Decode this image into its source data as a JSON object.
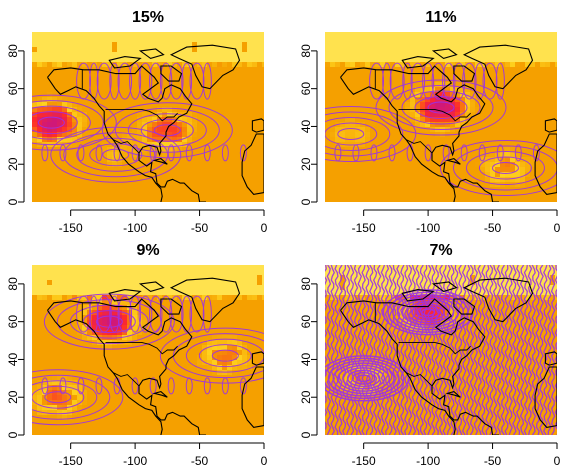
{
  "chart_data": [
    {
      "type": "heatmap",
      "title": "15%",
      "xticks": [
        -150,
        -100,
        -50,
        0
      ],
      "yticks": [
        0,
        20,
        40,
        60,
        80
      ],
      "xlim": [
        -180,
        0
      ],
      "ylim": [
        0,
        90
      ],
      "hotspots": [
        {
          "lon": -165,
          "lat": 42,
          "intensity": 1.0
        },
        {
          "lon": -75,
          "lat": 38,
          "intensity": 0.7
        },
        {
          "lon": -115,
          "lat": 25,
          "intensity": 0.3
        }
      ],
      "contour_density": 0.35
    },
    {
      "type": "heatmap",
      "title": "11%",
      "xticks": [
        -150,
        -100,
        -50,
        0
      ],
      "yticks": [
        0,
        20,
        40,
        60,
        80
      ],
      "xlim": [
        -180,
        0
      ],
      "ylim": [
        0,
        90
      ],
      "hotspots": [
        {
          "lon": -90,
          "lat": 50,
          "intensity": 1.0
        },
        {
          "lon": -40,
          "lat": 18,
          "intensity": 0.5
        },
        {
          "lon": -160,
          "lat": 36,
          "intensity": 0.35
        }
      ],
      "contour_density": 0.35
    },
    {
      "type": "heatmap",
      "title": "9%",
      "xticks": [
        -150,
        -100,
        -50,
        0
      ],
      "yticks": [
        0,
        20,
        40,
        60,
        80
      ],
      "xlim": [
        -180,
        0
      ],
      "ylim": [
        0,
        90
      ],
      "hotspots": [
        {
          "lon": -120,
          "lat": 60,
          "intensity": 1.0
        },
        {
          "lon": -160,
          "lat": 20,
          "intensity": 0.6
        },
        {
          "lon": -30,
          "lat": 42,
          "intensity": 0.55
        }
      ],
      "contour_density": 0.4
    },
    {
      "type": "heatmap",
      "title": "7%",
      "xticks": [
        -150,
        -100,
        -50,
        0
      ],
      "yticks": [
        0,
        20,
        40,
        60,
        80
      ],
      "xlim": [
        -180,
        0
      ],
      "ylim": [
        0,
        90
      ],
      "hotspots": [
        {
          "lon": -100,
          "lat": 65,
          "intensity": 0.8
        },
        {
          "lon": -150,
          "lat": 30,
          "intensity": 0.5
        }
      ],
      "contour_density": 1.0
    }
  ],
  "colors": {
    "low": "#f5a000",
    "mid": "#ffd21e",
    "high": "#ff2a2a",
    "peak": "#d01878",
    "contour": "#9b30e8",
    "coast": "#000000"
  }
}
